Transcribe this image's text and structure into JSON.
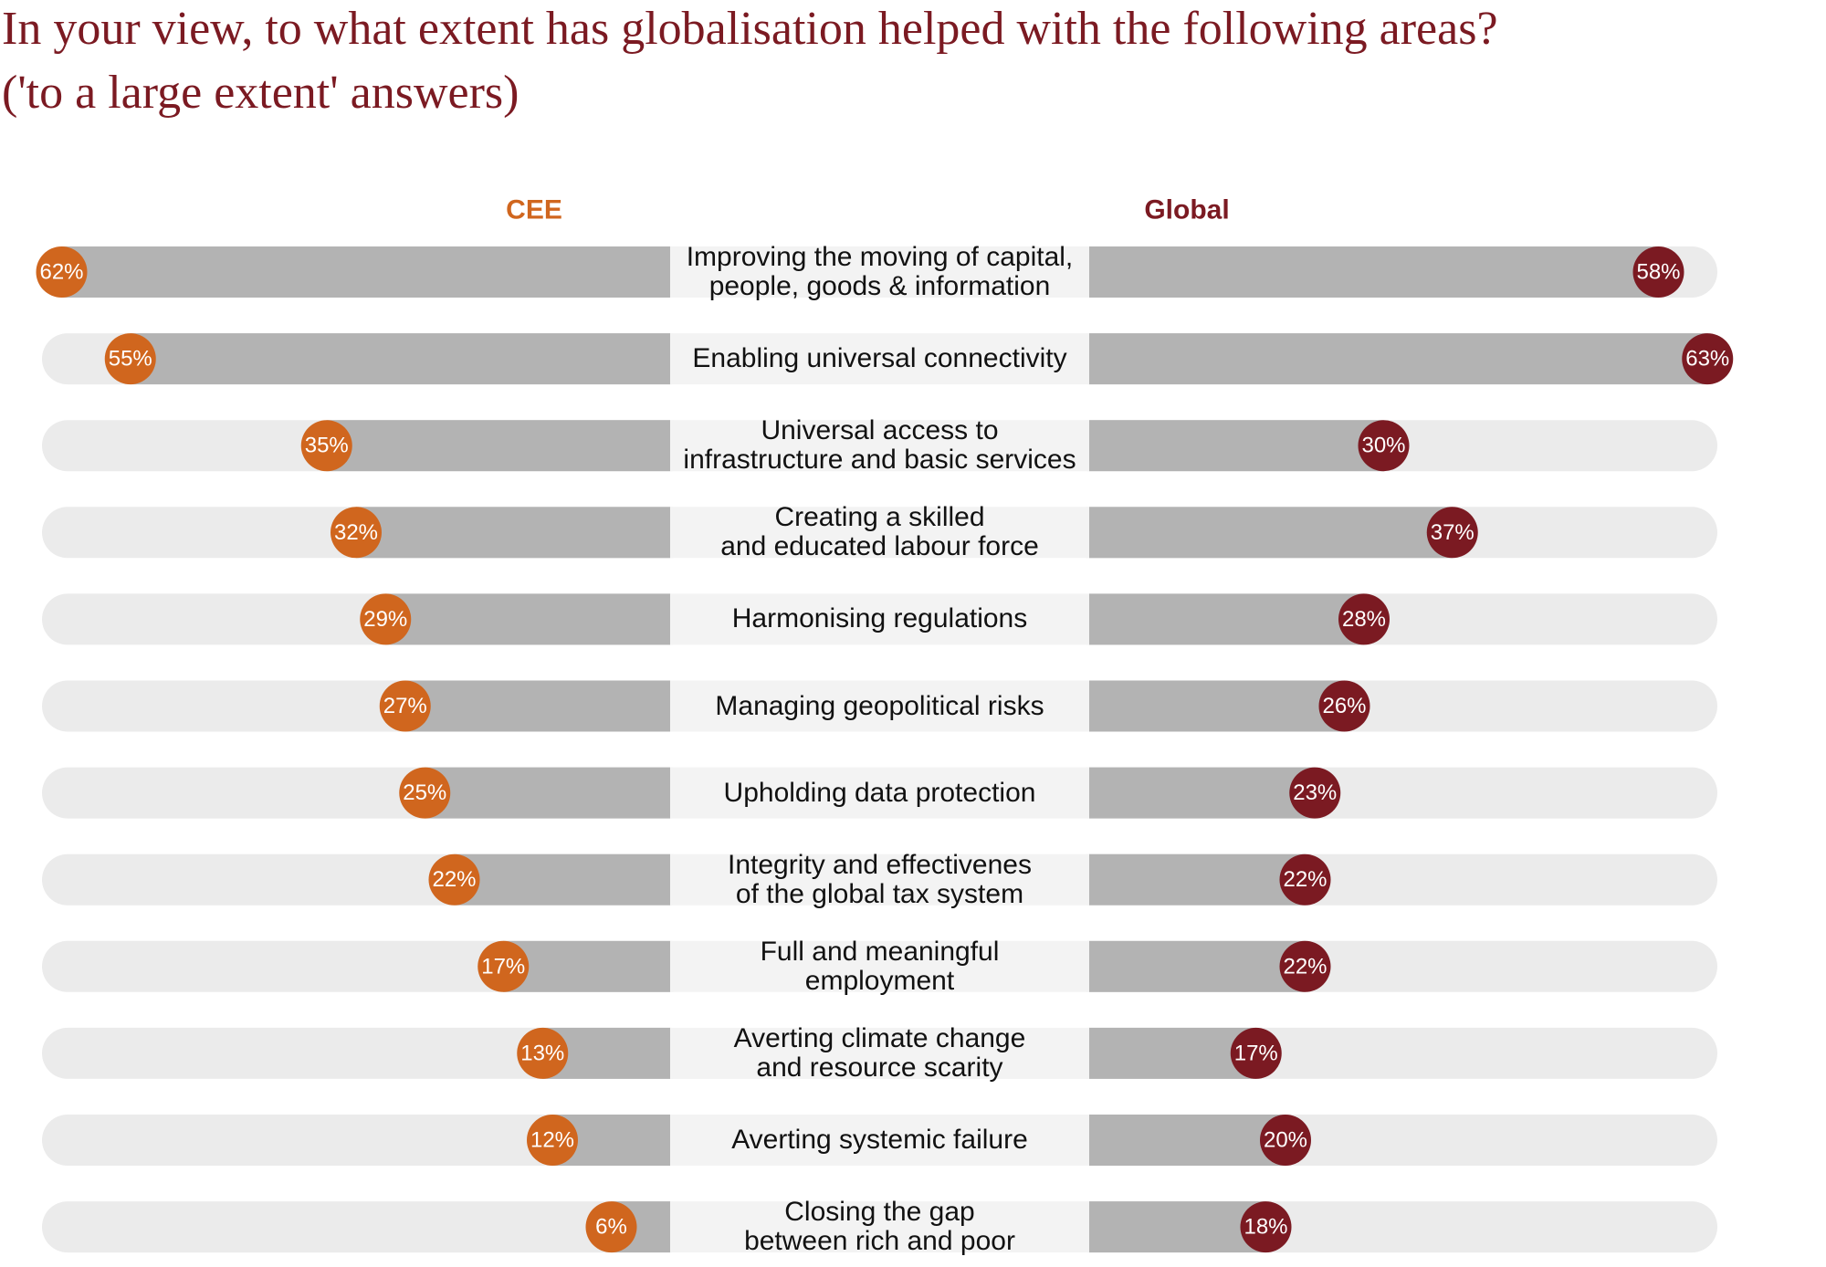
{
  "chart_data": {
    "type": "butterfly-bar",
    "title": "In your view, to what extent has globalisation helped with the following areas?",
    "subtitle": "('to a large extent' answers)",
    "categories": [
      "Improving the moving of capital,\npeople, goods & information",
      "Enabling universal connectivity",
      "Universal access to\ninfrastructure and basic services",
      "Creating a skilled\nand educated labour force",
      "Harmonising regulations",
      "Managing geopolitical risks",
      "Upholding data protection",
      "Integrity and effectivenes\nof the global tax system",
      "Full and meaningful\nemployment",
      "Averting climate change\nand resource scarity",
      "Averting systemic failure",
      "Closing the gap\nbetween rich and poor"
    ],
    "xlim": [
      0,
      64
    ],
    "series": [
      {
        "name": "CEE",
        "color": "#d0661e",
        "values": [
          62,
          55,
          35,
          32,
          29,
          27,
          25,
          22,
          17,
          13,
          12,
          6
        ],
        "value_labels": [
          "62%",
          "55%",
          "35%",
          "32%",
          "29%",
          "27%",
          "25%",
          "22%",
          "17%",
          "13%",
          "12%",
          "6%"
        ]
      },
      {
        "name": "Global",
        "color": "#7b1a22",
        "values": [
          58,
          63,
          30,
          37,
          28,
          26,
          23,
          22,
          22,
          17,
          20,
          18
        ],
        "value_labels": [
          "58%",
          "63%",
          "30%",
          "37%",
          "28%",
          "26%",
          "23%",
          "22%",
          "22%",
          "17%",
          "20%",
          "18%"
        ]
      }
    ]
  }
}
